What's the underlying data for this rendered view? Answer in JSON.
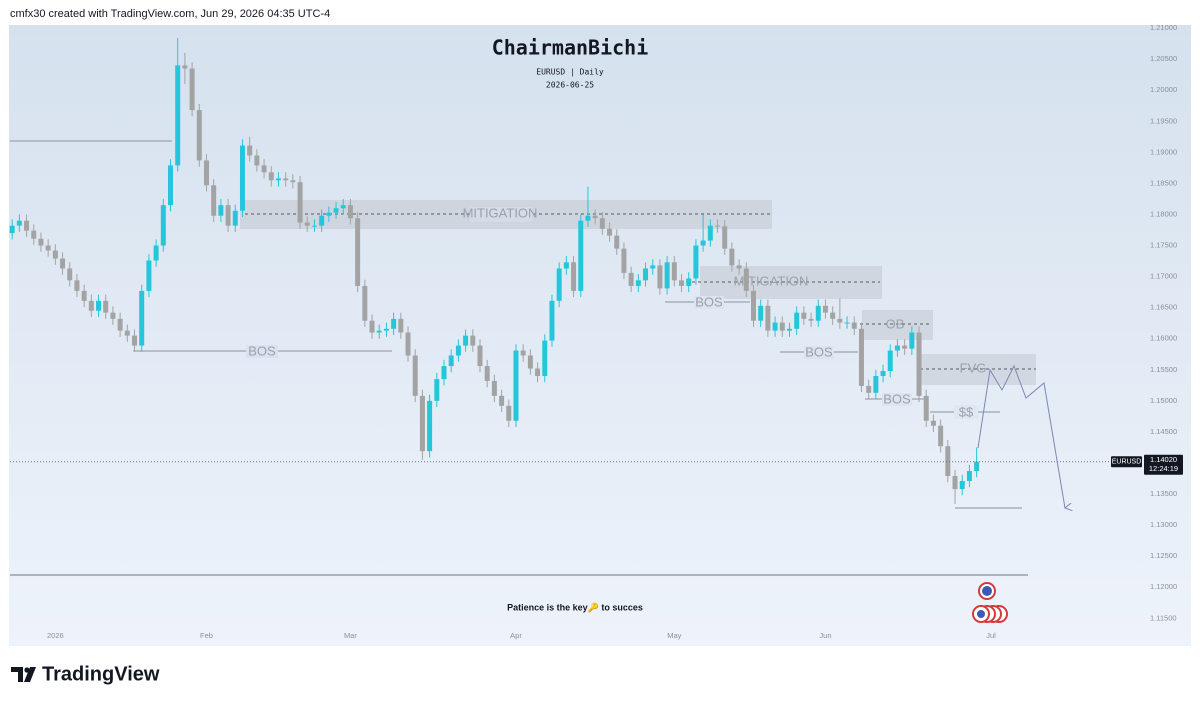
{
  "header": "cmfx30 created with TradingView.com, Jun 29, 2026 04:35 UTC-4",
  "brand": "TradingView",
  "chart_data": {
    "type": "candlestick",
    "title": "ChairmanBichi",
    "subtitle": "EURUSD | Daily",
    "date": "2026-06-25",
    "note": "Patience is the key🔑 to succes",
    "symbol": "EURUSD",
    "last_price": 1.1402,
    "last_price_label": "1.14020",
    "countdown": "12:24:19",
    "annotations": [
      "MITIGATION",
      "MITIGATION",
      "BOS",
      "BOS",
      "BOS",
      "BOS",
      "OB",
      "FVG",
      "$$"
    ],
    "colors": {
      "up": "#26c6da",
      "down": "#a3a3a3"
    },
    "xlim": [
      -0.3,
      156.7
    ],
    "ylim": [
      1.1107,
      1.2105
    ],
    "xticks": [
      {
        "value": 6,
        "label": "2026"
      },
      {
        "value": 27,
        "label": "Feb"
      },
      {
        "value": 47,
        "label": "Mar"
      },
      {
        "value": 70,
        "label": "Apr"
      },
      {
        "value": 92,
        "label": "May"
      },
      {
        "value": 113,
        "label": "Jun"
      },
      {
        "value": 136,
        "label": "Jul"
      }
    ],
    "yticks": [
      {
        "value": 1.21,
        "label": "1.21000"
      },
      {
        "value": 1.205,
        "label": "1.20500"
      },
      {
        "value": 1.2,
        "label": "1.20000"
      },
      {
        "value": 1.195,
        "label": "1.19500"
      },
      {
        "value": 1.19,
        "label": "1.19000"
      },
      {
        "value": 1.185,
        "label": "1.18500"
      },
      {
        "value": 1.18,
        "label": "1.18000"
      },
      {
        "value": 1.175,
        "label": "1.17500"
      },
      {
        "value": 1.17,
        "label": "1.17000"
      },
      {
        "value": 1.165,
        "label": "1.16500"
      },
      {
        "value": 1.16,
        "label": "1.16000"
      },
      {
        "value": 1.155,
        "label": "1.15500"
      },
      {
        "value": 1.15,
        "label": "1.15000"
      },
      {
        "value": 1.145,
        "label": "1.14500"
      },
      {
        "value": 1.135,
        "label": "1.13500"
      },
      {
        "value": 1.13,
        "label": "1.13000"
      },
      {
        "value": 1.125,
        "label": "1.12500"
      },
      {
        "value": 1.12,
        "label": "1.12000"
      },
      {
        "value": 1.115,
        "label": "1.11500"
      }
    ],
    "open": [
      1.177,
      1.1782,
      1.179,
      1.1774,
      1.1761,
      1.175,
      1.1742,
      1.1729,
      1.1713,
      1.1694,
      1.1677,
      1.1661,
      1.1645,
      1.1661,
      1.1642,
      1.1632,
      1.1613,
      1.1605,
      1.1589,
      1.1677,
      1.1726,
      1.175,
      1.1815,
      1.1879,
      1.204,
      1.2035,
      1.1968,
      1.1887,
      1.1847,
      1.1798,
      1.1815,
      1.1782,
      1.1806,
      1.1911,
      1.1895,
      1.1879,
      1.1868,
      1.1855,
      1.1858,
      1.1855,
      1.1852,
      1.1787,
      1.1782,
      1.1782,
      1.1798,
      1.1803,
      1.181,
      1.1815,
      1.1794,
      1.1685,
      1.1629,
      1.161,
      1.1613,
      1.1616,
      1.1632,
      1.161,
      1.1573,
      1.1508,
      1.1419,
      1.15,
      1.1535,
      1.1556,
      1.1573,
      1.1589,
      1.1605,
      1.1589,
      1.1556,
      1.1532,
      1.1508,
      1.1492,
      1.1468,
      1.1581,
      1.1573,
      1.1552,
      1.154,
      1.1597,
      1.1661,
      1.1713,
      1.1723,
      1.1677,
      1.179,
      1.1798,
      1.1794,
      1.1777,
      1.1766,
      1.1745,
      1.1706,
      1.1685,
      1.1694,
      1.1713,
      1.1718,
      1.1681,
      1.1723,
      1.1694,
      1.1685,
      1.1697,
      1.175,
      1.1758,
      1.1782,
      1.1781,
      1.1745,
      1.1718,
      1.1713,
      1.1677,
      1.1629,
      1.1653,
      1.1613,
      1.1626,
      1.1613,
      1.1616,
      1.1642,
      1.1632,
      1.1629,
      1.1653,
      1.1642,
      1.1632,
      1.1626,
      1.1626,
      1.1616,
      1.1524,
      1.1513,
      1.154,
      1.1548,
      1.1581,
      1.1589,
      1.1584,
      1.161,
      1.1508,
      1.1468,
      1.146,
      1.1427,
      1.1379,
      1.1358,
      1.1371,
      1.1387
    ],
    "high": [
      1.1792,
      1.18,
      1.18,
      1.1784,
      1.1771,
      1.176,
      1.1752,
      1.1739,
      1.1723,
      1.1704,
      1.1687,
      1.1671,
      1.1671,
      1.1671,
      1.1652,
      1.1642,
      1.1623,
      1.1615,
      1.1687,
      1.1736,
      1.176,
      1.1825,
      1.1889,
      1.2084,
      1.206,
      1.2045,
      1.1978,
      1.1897,
      1.1857,
      1.1825,
      1.1825,
      1.1816,
      1.1921,
      1.1925,
      1.1905,
      1.1889,
      1.1878,
      1.1868,
      1.1868,
      1.1865,
      1.1862,
      1.1797,
      1.1792,
      1.1808,
      1.1813,
      1.182,
      1.1825,
      1.1825,
      1.1804,
      1.1695,
      1.1639,
      1.1623,
      1.1626,
      1.1642,
      1.1642,
      1.162,
      1.1583,
      1.1518,
      1.151,
      1.1545,
      1.1566,
      1.1583,
      1.1599,
      1.1615,
      1.1615,
      1.1599,
      1.1566,
      1.1542,
      1.1518,
      1.1502,
      1.1591,
      1.1591,
      1.1583,
      1.1562,
      1.1607,
      1.1671,
      1.1723,
      1.1733,
      1.1733,
      1.18,
      1.1845,
      1.1808,
      1.1804,
      1.1787,
      1.1776,
      1.1755,
      1.1716,
      1.1704,
      1.1723,
      1.1728,
      1.1728,
      1.1733,
      1.1733,
      1.1704,
      1.1707,
      1.176,
      1.18,
      1.1792,
      1.1792,
      1.1791,
      1.1755,
      1.1728,
      1.1723,
      1.1687,
      1.1663,
      1.1663,
      1.1636,
      1.1636,
      1.1626,
      1.1652,
      1.1652,
      1.1642,
      1.1663,
      1.1663,
      1.1652,
      1.1665,
      1.1636,
      1.1636,
      1.1626,
      1.1534,
      1.155,
      1.1558,
      1.1591,
      1.1599,
      1.1599,
      1.162,
      1.162,
      1.1518,
      1.1478,
      1.147,
      1.1437,
      1.1389,
      1.1381,
      1.1397,
      1.1425
    ],
    "low": [
      1.176,
      1.1772,
      1.1764,
      1.1751,
      1.174,
      1.1732,
      1.1719,
      1.1703,
      1.1684,
      1.1667,
      1.1651,
      1.1635,
      1.1635,
      1.1632,
      1.1622,
      1.1603,
      1.1595,
      1.1579,
      1.1579,
      1.1667,
      1.1716,
      1.174,
      1.1805,
      1.1869,
      1.201,
      1.1958,
      1.1877,
      1.1837,
      1.1788,
      1.1788,
      1.1772,
      1.1772,
      1.1796,
      1.1885,
      1.1869,
      1.1858,
      1.1845,
      1.1845,
      1.1845,
      1.1842,
      1.1777,
      1.1772,
      1.1772,
      1.1772,
      1.1788,
      1.1793,
      1.18,
      1.1784,
      1.1675,
      1.1619,
      1.16,
      1.16,
      1.1603,
      1.1606,
      1.16,
      1.1563,
      1.1498,
      1.1405,
      1.1409,
      1.149,
      1.1525,
      1.1546,
      1.1563,
      1.1579,
      1.1579,
      1.1546,
      1.1522,
      1.1498,
      1.1482,
      1.1458,
      1.1458,
      1.1563,
      1.1542,
      1.153,
      1.153,
      1.1587,
      1.1651,
      1.1703,
      1.1667,
      1.1667,
      1.178,
      1.1784,
      1.1767,
      1.1756,
      1.1735,
      1.1696,
      1.1675,
      1.1675,
      1.1684,
      1.1703,
      1.1671,
      1.1671,
      1.1684,
      1.1675,
      1.1675,
      1.1687,
      1.174,
      1.1748,
      1.1771,
      1.1735,
      1.1708,
      1.1703,
      1.1667,
      1.1619,
      1.1619,
      1.1603,
      1.1603,
      1.1603,
      1.1603,
      1.1606,
      1.1622,
      1.1619,
      1.1619,
      1.1632,
      1.1622,
      1.1616,
      1.1616,
      1.1606,
      1.1514,
      1.1503,
      1.1503,
      1.153,
      1.1538,
      1.1571,
      1.1574,
      1.1574,
      1.1498,
      1.1458,
      1.145,
      1.1417,
      1.1369,
      1.1334,
      1.1348,
      1.1361,
      1.1377
    ],
    "close": [
      1.1782,
      1.179,
      1.1774,
      1.1761,
      1.175,
      1.1742,
      1.1729,
      1.1713,
      1.1694,
      1.1677,
      1.1661,
      1.1645,
      1.1661,
      1.1642,
      1.1632,
      1.1613,
      1.1605,
      1.1589,
      1.1677,
      1.1726,
      1.175,
      1.1815,
      1.1879,
      1.204,
      1.2035,
      1.1968,
      1.1887,
      1.1847,
      1.1798,
      1.1815,
      1.1782,
      1.1806,
      1.1911,
      1.1895,
      1.1879,
      1.1868,
      1.1855,
      1.1858,
      1.1855,
      1.1852,
      1.1787,
      1.1782,
      1.1782,
      1.1798,
      1.1803,
      1.181,
      1.1815,
      1.1794,
      1.1685,
      1.1629,
      1.161,
      1.1613,
      1.1616,
      1.1632,
      1.161,
      1.1573,
      1.1508,
      1.1419,
      1.15,
      1.1535,
      1.1556,
      1.1573,
      1.1589,
      1.1605,
      1.1589,
      1.1556,
      1.1532,
      1.1508,
      1.1492,
      1.1468,
      1.1581,
      1.1573,
      1.1552,
      1.154,
      1.1597,
      1.1661,
      1.1713,
      1.1723,
      1.1677,
      1.179,
      1.1798,
      1.1794,
      1.1777,
      1.1766,
      1.1745,
      1.1706,
      1.1685,
      1.1694,
      1.1713,
      1.1718,
      1.1681,
      1.1723,
      1.1694,
      1.1685,
      1.1697,
      1.175,
      1.1758,
      1.1782,
      1.1781,
      1.1745,
      1.1718,
      1.1713,
      1.1677,
      1.1629,
      1.1653,
      1.1613,
      1.1626,
      1.1613,
      1.1616,
      1.1642,
      1.1632,
      1.1629,
      1.1653,
      1.1642,
      1.1632,
      1.1626,
      1.1626,
      1.1616,
      1.1524,
      1.1513,
      1.154,
      1.1548,
      1.1581,
      1.1589,
      1.1584,
      1.161,
      1.1508,
      1.1468,
      1.146,
      1.1427,
      1.1379,
      1.1358,
      1.1371,
      1.1387,
      1.1402
    ]
  }
}
